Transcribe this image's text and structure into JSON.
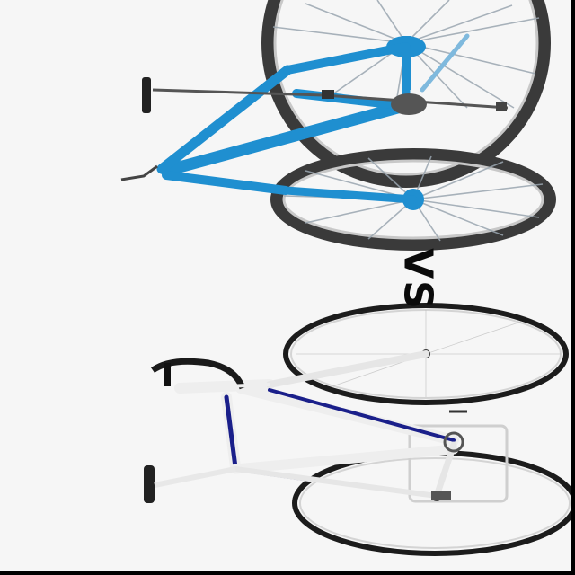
{
  "image": {
    "label_text": "VS",
    "subjects": [
      "blue-mountain-bike",
      "white-road-bike"
    ]
  },
  "colors": {
    "background": "#f6f6f6",
    "blue_bike_frame": "#1f8fd0",
    "road_bike_frame": "#eeeeee",
    "road_bike_accent": "#1a1f8a",
    "tire": "#3a3a3a",
    "rim_light": "#9a9a9a",
    "hardware": "#444444"
  }
}
